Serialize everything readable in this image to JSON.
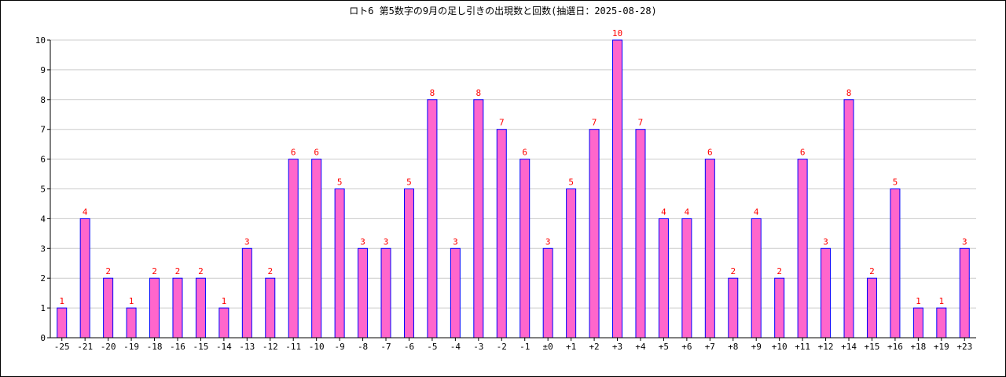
{
  "chart_data": {
    "type": "bar",
    "title": "ロト6 第5数字の9月の足し引きの出現数と回数(抽選日：2025-08-28)",
    "xlabel": "",
    "ylabel": "",
    "ylim": [
      0,
      10
    ],
    "yticks": [
      0,
      1,
      2,
      3,
      4,
      5,
      6,
      7,
      8,
      9,
      10
    ],
    "grid": true,
    "categories": [
      "-25",
      "-21",
      "-20",
      "-19",
      "-18",
      "-16",
      "-15",
      "-14",
      "-13",
      "-12",
      "-11",
      "-10",
      "-9",
      "-8",
      "-7",
      "-6",
      "-5",
      "-4",
      "-3",
      "-2",
      "-1",
      "±0",
      "+1",
      "+2",
      "+3",
      "+4",
      "+5",
      "+6",
      "+7",
      "+8",
      "+9",
      "+10",
      "+11",
      "+12",
      "+14",
      "+15",
      "+16",
      "+18",
      "+19",
      "+23"
    ],
    "values": [
      1,
      4,
      2,
      1,
      2,
      2,
      2,
      1,
      3,
      2,
      6,
      6,
      5,
      3,
      3,
      5,
      8,
      3,
      8,
      7,
      6,
      3,
      5,
      7,
      10,
      7,
      4,
      4,
      6,
      2,
      4,
      2,
      6,
      3,
      8,
      2,
      5,
      1,
      1,
      3
    ],
    "colors": {
      "bar_fill": "#ff66cc",
      "bar_stroke": "#0000ff",
      "label": "#ff0000",
      "grid": "#cccccc",
      "axis": "#000000"
    }
  }
}
